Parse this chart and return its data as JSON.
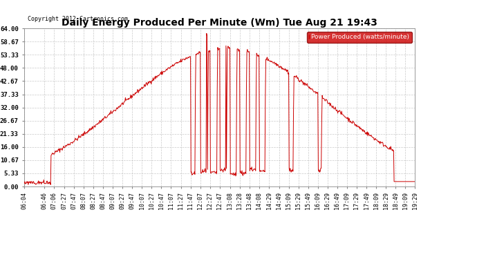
{
  "title": "Daily Energy Produced Per Minute (Wm) Tue Aug 21 19:43",
  "copyright": "Copyright 2012 Cartronics.com",
  "legend_label": "Power Produced (watts/minute)",
  "legend_bg": "#cc0000",
  "legend_fg": "#ffffff",
  "line_color": "#cc0000",
  "background_color": "#ffffff",
  "grid_color": "#bbbbbb",
  "ylim": [
    0,
    64.0
  ],
  "yticks": [
    0.0,
    5.33,
    10.67,
    16.0,
    21.33,
    26.67,
    32.0,
    37.33,
    42.67,
    48.0,
    53.33,
    58.67,
    64.0
  ],
  "title_fontsize": 10,
  "tick_fontsize": 6.5,
  "copyright_fontsize": 6,
  "legend_fontsize": 6.5,
  "x_tick_labels": [
    "06:04",
    "06:46",
    "07:06",
    "07:27",
    "07:47",
    "08:07",
    "08:27",
    "08:47",
    "09:07",
    "09:27",
    "09:47",
    "10:07",
    "10:27",
    "10:47",
    "11:07",
    "11:27",
    "11:47",
    "12:07",
    "12:27",
    "12:47",
    "13:08",
    "13:28",
    "13:48",
    "14:08",
    "14:29",
    "14:49",
    "15:09",
    "15:29",
    "15:49",
    "16:09",
    "16:29",
    "16:49",
    "17:09",
    "17:29",
    "17:49",
    "18:09",
    "18:29",
    "18:49",
    "19:09",
    "19:29"
  ]
}
